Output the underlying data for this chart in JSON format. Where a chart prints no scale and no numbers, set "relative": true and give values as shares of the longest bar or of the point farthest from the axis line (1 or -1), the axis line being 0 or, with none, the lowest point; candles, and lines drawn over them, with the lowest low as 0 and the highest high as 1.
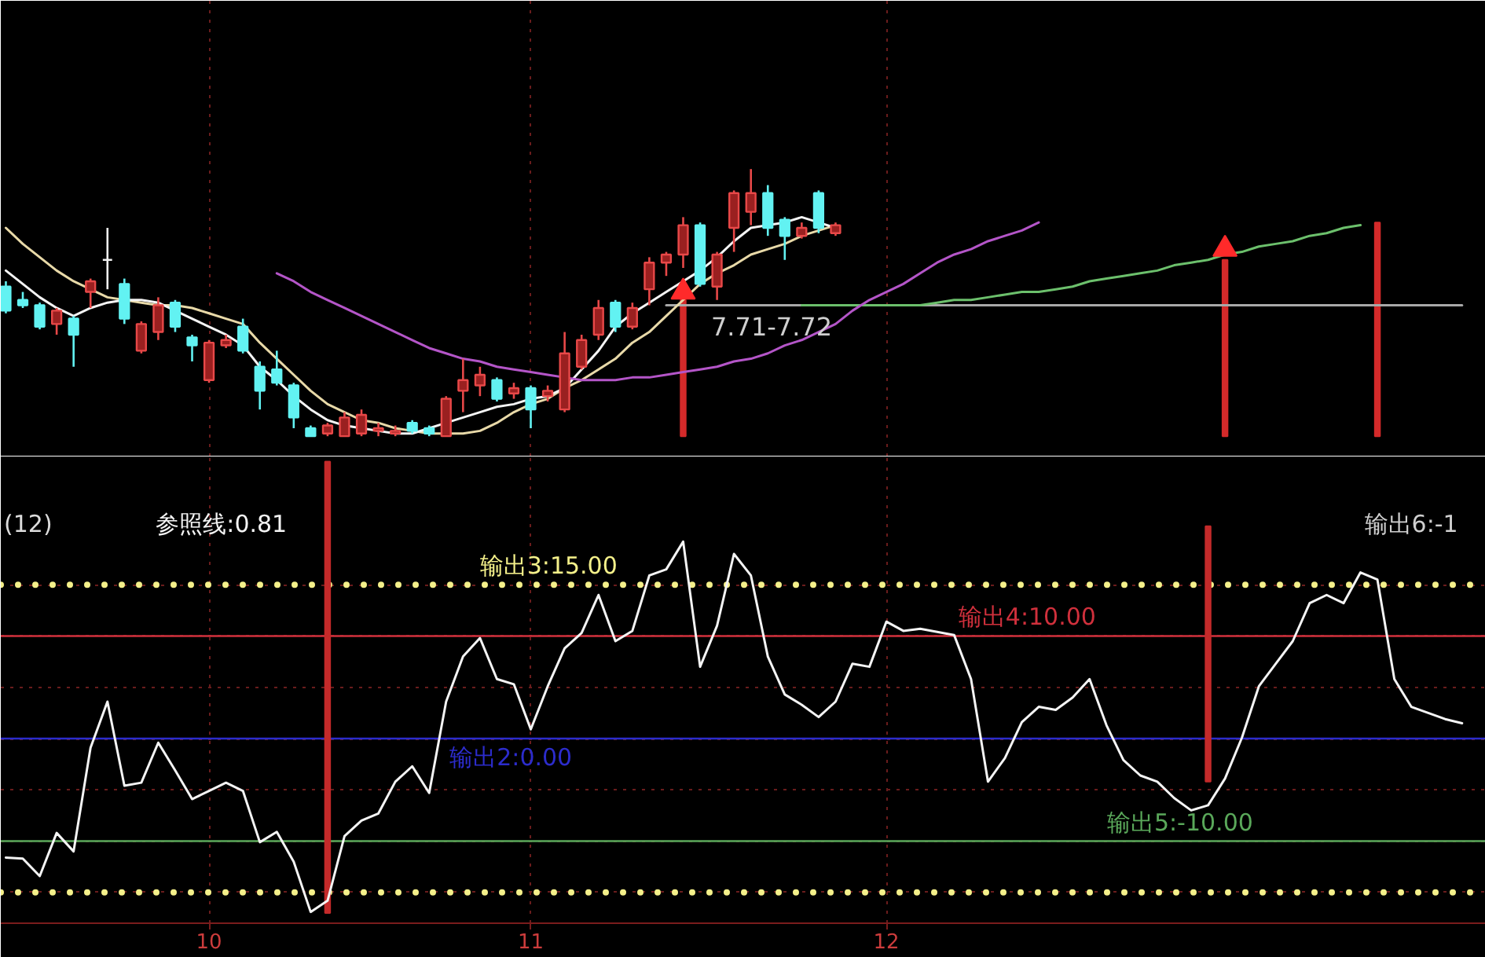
{
  "chart_data": [
    {
      "type": "candlestick",
      "relative": true,
      "categories": [
        null,
        null,
        null,
        null,
        null,
        null,
        null,
        null,
        null,
        null,
        null,
        null,
        "10",
        null,
        null,
        null,
        null,
        null,
        null,
        null,
        null,
        null,
        null,
        null,
        null,
        null,
        null,
        null,
        null,
        null,
        null,
        "11",
        null,
        null,
        null,
        null,
        null,
        null,
        null,
        null,
        null,
        null,
        null,
        null,
        null,
        null,
        null,
        null,
        null,
        null,
        null,
        null,
        "12",
        null,
        null,
        null,
        null,
        null,
        null,
        null,
        null,
        null,
        null,
        null,
        null,
        null,
        null,
        null,
        null,
        null,
        null,
        null,
        null,
        null,
        null,
        null,
        null,
        null,
        null,
        null,
        null,
        null,
        null,
        null,
        null,
        null,
        null
      ],
      "ohlc": [
        [
          0.56,
          0.58,
          0.46,
          0.47
        ],
        [
          0.51,
          0.54,
          0.48,
          0.49
        ],
        [
          0.49,
          0.5,
          0.4,
          0.41
        ],
        [
          0.42,
          0.48,
          0.38,
          0.47
        ],
        [
          0.44,
          0.45,
          0.26,
          0.38
        ],
        [
          0.54,
          0.59,
          0.48,
          0.58
        ],
        [
          0.66,
          0.78,
          0.55,
          0.66
        ],
        [
          0.57,
          0.59,
          0.42,
          0.44
        ],
        [
          0.32,
          0.43,
          0.31,
          0.42
        ],
        [
          0.39,
          0.52,
          0.36,
          0.49
        ],
        [
          0.5,
          0.51,
          0.39,
          0.41
        ],
        [
          0.37,
          0.38,
          0.28,
          0.34
        ],
        [
          0.21,
          0.36,
          0.2,
          0.35
        ],
        [
          0.34,
          0.38,
          0.33,
          0.36
        ],
        [
          0.41,
          0.44,
          0.31,
          0.32
        ],
        [
          0.26,
          0.28,
          0.1,
          0.17
        ],
        [
          0.25,
          0.32,
          0.19,
          0.2
        ],
        [
          0.19,
          0.2,
          0.03,
          0.07
        ],
        [
          0.03,
          0.04,
          0,
          0
        ],
        [
          0.01,
          0.05,
          0,
          0.04
        ],
        [
          0,
          0.09,
          0,
          0.07
        ],
        [
          0.01,
          0.1,
          0,
          0.08
        ],
        [
          0.02,
          0.05,
          0,
          0.03
        ],
        [
          0.01,
          0.04,
          0,
          0.02
        ],
        [
          0.05,
          0.06,
          0.01,
          0.02
        ],
        [
          0.03,
          0.04,
          0,
          0.01
        ],
        [
          0,
          0.15,
          0,
          0.14
        ],
        [
          0.17,
          0.29,
          0.09,
          0.21
        ],
        [
          0.19,
          0.26,
          0.15,
          0.23
        ],
        [
          0.21,
          0.22,
          0.13,
          0.14
        ],
        [
          0.16,
          0.2,
          0.14,
          0.18
        ],
        [
          0.18,
          0.19,
          0.03,
          0.1
        ],
        [
          0.15,
          0.19,
          0.13,
          0.17
        ],
        [
          0.1,
          0.39,
          0.09,
          0.31
        ],
        [
          0.26,
          0.38,
          0.25,
          0.36
        ],
        [
          0.38,
          0.51,
          0.36,
          0.48
        ],
        [
          0.5,
          0.51,
          0.39,
          0.41
        ],
        [
          0.41,
          0.5,
          0.4,
          0.48
        ],
        [
          0.55,
          0.67,
          0.49,
          0.65
        ],
        [
          0.65,
          0.69,
          0.6,
          0.68
        ],
        [
          0.68,
          0.82,
          0.63,
          0.79
        ],
        [
          0.79,
          0.8,
          0.56,
          0.57
        ],
        [
          0.56,
          0.69,
          0.51,
          0.68
        ],
        [
          0.78,
          0.92,
          0.69,
          0.91
        ],
        [
          0.84,
          1,
          0.79,
          0.91
        ],
        [
          0.91,
          0.94,
          0.75,
          0.78
        ],
        [
          0.81,
          0.82,
          0.66,
          0.75
        ],
        [
          0.75,
          0.8,
          0.74,
          0.78
        ],
        [
          0.91,
          0.92,
          0.76,
          0.78
        ],
        [
          0.76,
          0.8,
          0.75,
          0.79
        ],
        null,
        null,
        null,
        null,
        null,
        null,
        null,
        null,
        null,
        null,
        null,
        null,
        null,
        null,
        null,
        null,
        null,
        null,
        null,
        null,
        null,
        null,
        null,
        null,
        null,
        null,
        null,
        null,
        null,
        null,
        null,
        null,
        null,
        null,
        null,
        null,
        null
      ],
      "series": [
        {
          "type": "bar",
          "color": "#d42a2a",
          "values": [
            null,
            null,
            null,
            null,
            null,
            null,
            null,
            null,
            null,
            null,
            null,
            null,
            null,
            null,
            null,
            null,
            null,
            null,
            null,
            null,
            null,
            null,
            null,
            null,
            null,
            null,
            null,
            null,
            null,
            null,
            null,
            null,
            null,
            null,
            null,
            null,
            null,
            null,
            null,
            null,
            0.51,
            null,
            null,
            null,
            null,
            null,
            null,
            null,
            null,
            null,
            null,
            null,
            null,
            null,
            null,
            null,
            null,
            null,
            null,
            null,
            null,
            null,
            null,
            null,
            null,
            null,
            null,
            null,
            null,
            null,
            null,
            null,
            0.66,
            null,
            null,
            null,
            null,
            null,
            null,
            null,
            null,
            0.8,
            null,
            null,
            null,
            null,
            null
          ]
        },
        {
          "type": "line",
          "color": "#b455c8",
          "values": [
            null,
            null,
            null,
            null,
            null,
            null,
            null,
            null,
            null,
            null,
            null,
            null,
            null,
            null,
            null,
            null,
            0.61,
            0.58,
            0.54,
            0.51,
            0.48,
            0.45,
            0.42,
            0.39,
            0.36,
            0.33,
            0.31,
            0.29,
            0.28,
            0.26,
            0.25,
            0.24,
            0.23,
            0.22,
            0.21,
            0.21,
            0.21,
            0.22,
            0.22,
            0.23,
            0.24,
            0.25,
            0.26,
            0.28,
            0.29,
            0.31,
            0.34,
            0.36,
            0.39,
            0.42,
            0.47,
            0.51,
            0.54,
            0.57,
            0.61,
            0.65,
            0.68,
            0.7,
            0.73,
            0.75,
            0.77,
            0.8,
            null,
            null,
            null,
            null,
            null,
            null,
            null,
            null,
            null,
            null,
            null,
            null,
            null,
            null,
            null,
            null,
            null,
            null,
            null,
            null,
            null,
            null,
            null,
            null,
            null
          ]
        },
        {
          "type": "line",
          "color": "#6cc06c",
          "values": [
            null,
            null,
            null,
            null,
            null,
            null,
            null,
            null,
            null,
            null,
            null,
            null,
            null,
            null,
            null,
            null,
            null,
            null,
            null,
            null,
            null,
            null,
            null,
            null,
            null,
            null,
            null,
            null,
            null,
            null,
            null,
            null,
            null,
            null,
            null,
            null,
            null,
            null,
            null,
            null,
            null,
            null,
            null,
            null,
            null,
            null,
            null,
            0.49,
            0.49,
            0.49,
            0.49,
            0.49,
            0.49,
            0.49,
            0.49,
            0.5,
            0.51,
            0.51,
            0.52,
            0.53,
            0.54,
            0.54,
            0.55,
            0.56,
            0.58,
            0.59,
            0.6,
            0.61,
            0.62,
            0.64,
            0.65,
            0.66,
            0.68,
            0.69,
            0.71,
            0.72,
            0.73,
            0.75,
            0.76,
            0.78,
            0.79,
            null,
            null,
            null,
            null,
            null,
            null
          ]
        },
        {
          "type": "line",
          "color": "#f4f4f4",
          "values": [
            0.62,
            0.57,
            0.52,
            0.48,
            0.45,
            0.48,
            0.5,
            0.51,
            0.51,
            0.5,
            0.47,
            0.44,
            0.41,
            0.38,
            0.34,
            0.26,
            0.21,
            0.15,
            0.1,
            0.06,
            0.04,
            0.03,
            0.02,
            0.01,
            0.01,
            0.03,
            0.05,
            0.07,
            0.09,
            0.11,
            0.12,
            0.14,
            0.15,
            0.18,
            0.25,
            0.32,
            0.41,
            0.46,
            0.5,
            0.54,
            0.58,
            0.62,
            0.67,
            0.73,
            0.78,
            0.79,
            0.8,
            0.82,
            0.8,
            0.78,
            null,
            null,
            null,
            null,
            null,
            null,
            null,
            null,
            null,
            null,
            null,
            null,
            null,
            null,
            null,
            null,
            null,
            null,
            null,
            null,
            null,
            null,
            null,
            null,
            null,
            null,
            null,
            null,
            null,
            null,
            null,
            null,
            null,
            null,
            null,
            null,
            null
          ]
        },
        {
          "type": "line",
          "color": "#e8d9a8",
          "values": [
            0.78,
            0.72,
            0.67,
            0.62,
            0.58,
            0.55,
            0.52,
            0.51,
            0.5,
            0.49,
            0.49,
            0.48,
            0.46,
            0.44,
            0.42,
            0.35,
            0.29,
            0.23,
            0.17,
            0.12,
            0.09,
            0.06,
            0.05,
            0.03,
            0.02,
            0.01,
            0.01,
            0.01,
            0.02,
            0.05,
            0.09,
            0.12,
            0.14,
            0.18,
            0.21,
            0.25,
            0.29,
            0.35,
            0.39,
            0.45,
            0.51,
            0.57,
            0.61,
            0.64,
            0.68,
            0.7,
            0.72,
            0.75,
            0.77,
            0.79,
            null,
            null,
            null,
            null,
            null,
            null,
            null,
            null,
            null,
            null,
            null,
            null,
            null,
            null,
            null,
            null,
            null,
            null,
            null,
            null,
            null,
            null,
            null,
            null,
            null,
            null,
            null,
            null,
            null,
            null,
            null,
            null,
            null,
            null,
            null,
            null,
            null
          ]
        },
        {
          "type": "line",
          "color": "#a8a8a8",
          "values": [
            null,
            null,
            null,
            null,
            null,
            null,
            null,
            null,
            null,
            null,
            null,
            null,
            null,
            null,
            null,
            null,
            null,
            null,
            null,
            null,
            null,
            null,
            null,
            null,
            null,
            null,
            null,
            null,
            null,
            null,
            null,
            null,
            null,
            null,
            null,
            null,
            null,
            null,
            null,
            0.49,
            0.49,
            0.49,
            0.49,
            0.49,
            0.49,
            0.49,
            0.49,
            0.49,
            0.49,
            0.49,
            0.49,
            0.49,
            0.49,
            0.49,
            0.49,
            0.49,
            0.49,
            0.49,
            0.49,
            0.49,
            0.49,
            0.49,
            0.49,
            0.49,
            0.49,
            0.49,
            0.49,
            0.49,
            0.49,
            0.49,
            0.49,
            0.49,
            0.49,
            0.49,
            0.49,
            0.49,
            0.49,
            0.49,
            0.49,
            0.49,
            0.49,
            0.49,
            0.49,
            0.49,
            0.49,
            0.49,
            0.49
          ]
        },
        {
          "type": "scatter",
          "marker": "triangle",
          "color": "#ff2a2a",
          "values": [
            null,
            null,
            null,
            null,
            null,
            null,
            null,
            null,
            null,
            null,
            null,
            null,
            null,
            null,
            null,
            null,
            null,
            null,
            null,
            null,
            null,
            null,
            null,
            null,
            null,
            null,
            null,
            null,
            null,
            null,
            null,
            null,
            null,
            null,
            null,
            null,
            null,
            null,
            null,
            null,
            0.54,
            null,
            null,
            null,
            null,
            null,
            null,
            null,
            null,
            null,
            null,
            null,
            null,
            null,
            null,
            null,
            null,
            null,
            null,
            null,
            null,
            null,
            null,
            null,
            null,
            null,
            null,
            null,
            null,
            null,
            null,
            null,
            0.7,
            null,
            null,
            null,
            null,
            null,
            null,
            null,
            null,
            null,
            null,
            null,
            null,
            null,
            null
          ]
        }
      ],
      "annotations": [
        {
          "text": "7.71-7.72",
          "y": 0.49
        }
      ],
      "tick_labels": false,
      "grid": "x"
    },
    {
      "type": "line",
      "title": "(12)",
      "categories": [
        null,
        null,
        null,
        null,
        null,
        null,
        null,
        null,
        null,
        null,
        null,
        null,
        "10",
        null,
        null,
        null,
        null,
        null,
        null,
        null,
        null,
        null,
        null,
        null,
        null,
        null,
        null,
        null,
        null,
        null,
        null,
        "11",
        null,
        null,
        null,
        null,
        null,
        null,
        null,
        null,
        null,
        null,
        null,
        null,
        null,
        null,
        null,
        null,
        null,
        null,
        null,
        null,
        "12",
        null,
        null,
        null,
        null,
        null,
        null,
        null,
        null,
        null,
        null,
        null,
        null,
        null,
        null,
        null,
        null,
        null,
        null,
        null,
        null,
        null,
        null,
        null,
        null,
        null,
        null,
        null,
        null,
        null,
        null,
        null,
        null,
        null,
        null
      ],
      "series": [
        {
          "name": "参照线:0.81",
          "color": "#f4f4f4",
          "values": [
            -11.6,
            -11.7,
            -13.4,
            -9.2,
            -11.0,
            -0.9,
            3.6,
            -4.6,
            -4.3,
            -0.4,
            -3.1,
            -5.9,
            -5.1,
            -4.3,
            -5.1,
            -10.1,
            -9.1,
            -12.0,
            -16.9,
            -15.8,
            -9.5,
            -8.0,
            -7.3,
            -4.2,
            -2.7,
            -5.3,
            3.6,
            8.0,
            9.8,
            5.8,
            5.3,
            0.9,
            5.1,
            8.8,
            10.3,
            14.0,
            9.5,
            10.5,
            15.9,
            16.5,
            19.2,
            7.0,
            11.0,
            18.0,
            15.9,
            8.0,
            4.3,
            3.3,
            2.1,
            3.6,
            7.3,
            7.0,
            11.4,
            10.5,
            10.7,
            10.4,
            10.1,
            5.8,
            -4.2,
            -1.9,
            1.6,
            3.1,
            2.8,
            4.0,
            5.8,
            1.3,
            -2.1,
            -3.6,
            -4.2,
            -5.8,
            -7.0,
            -6.5,
            -3.9,
            0.1,
            5.1,
            7.3,
            9.5,
            13.2,
            14.0,
            13.2,
            16.2,
            15.5,
            5.8,
            3.1,
            2.5,
            1.9,
            1.5
          ]
        },
        {
          "type": "bar",
          "color": "#c42a2a",
          "base": [
            null,
            null,
            null,
            null,
            null,
            null,
            null,
            null,
            null,
            null,
            null,
            null,
            null,
            null,
            null,
            null,
            null,
            null,
            null,
            -17,
            null,
            null,
            null,
            null,
            null,
            null,
            null,
            null,
            null,
            null,
            null,
            null,
            null,
            null,
            null,
            null,
            null,
            null,
            null,
            null,
            null,
            null,
            null,
            null,
            null,
            null,
            null,
            null,
            null,
            null,
            null,
            null,
            null,
            null,
            null,
            null,
            null,
            null,
            null,
            null,
            null,
            null,
            null,
            null,
            null,
            null,
            null,
            null,
            null,
            null,
            null,
            -4.2,
            null,
            null,
            null,
            null,
            null,
            null,
            null,
            null,
            null,
            null,
            null,
            null,
            null,
            null,
            null
          ],
          "values": [
            null,
            null,
            null,
            null,
            null,
            null,
            null,
            null,
            null,
            null,
            null,
            null,
            null,
            null,
            null,
            null,
            null,
            null,
            null,
            44,
            null,
            null,
            null,
            null,
            null,
            null,
            null,
            null,
            null,
            null,
            null,
            null,
            null,
            null,
            null,
            null,
            null,
            null,
            null,
            null,
            null,
            null,
            null,
            null,
            null,
            null,
            null,
            null,
            null,
            null,
            null,
            null,
            null,
            null,
            null,
            null,
            null,
            null,
            null,
            null,
            null,
            null,
            null,
            null,
            null,
            null,
            null,
            null,
            null,
            null,
            null,
            24.9,
            null,
            null,
            null,
            null,
            null,
            null,
            null,
            null,
            null,
            null,
            null,
            null,
            null,
            null,
            null
          ]
        }
      ],
      "ref_lines": [
        {
          "axis": "y",
          "value": 0,
          "label": "输出2:0.00",
          "color": "#2c2ccc"
        },
        {
          "axis": "y",
          "value": 15,
          "label": "输出3:15.00",
          "color": "#f4f08a",
          "line_style": "dotted"
        },
        {
          "axis": "y",
          "value": 10,
          "label": "输出4:10.00",
          "color": "#d0303c"
        },
        {
          "axis": "y",
          "value": -10,
          "label": "输出5:-10.00",
          "color": "#5aa85a"
        },
        {
          "axis": "y",
          "value": -15,
          "color": "#f4f08a",
          "line_style": "dotted"
        }
      ],
      "annotations": [
        "输出6:-1"
      ],
      "ylim": [
        -18,
        27.5
      ],
      "yticks": [
        {
          "value": -15,
          "label": null
        },
        {
          "value": -10,
          "label": null
        },
        {
          "value": -5,
          "label": null
        },
        {
          "value": 0,
          "label": null
        },
        {
          "value": 5,
          "label": null
        },
        {
          "value": 10,
          "label": null
        },
        {
          "value": 15,
          "label": null
        }
      ],
      "tick_labels": "x",
      "grid": true,
      "legend": "top"
    }
  ]
}
